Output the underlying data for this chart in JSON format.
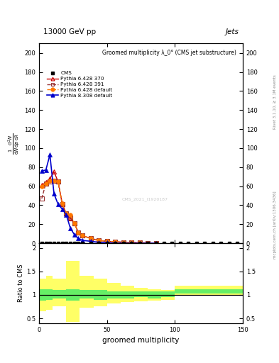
{
  "title_top_left": "13000 GeV pp",
  "title_top_right": "Jets",
  "plot_title": "Groomed multiplicity λ_0° (CMS jet substructure)",
  "ylabel_ratio": "Ratio to CMS",
  "xlabel": "groomed multiplicity",
  "right_label_top": "Rivet 3.1.10, ≥ 3.1M events",
  "right_label_bottom": "mcplots.cern.ch [arXiv:1306.3436]",
  "watermark": "CMS_2021_I1920187",
  "xlim": [
    0,
    150
  ],
  "ylim_main": [
    0,
    210
  ],
  "ylim_ratio": [
    0.4,
    2.1
  ],
  "yticks_main": [
    0,
    20,
    40,
    60,
    80,
    100,
    120,
    140,
    160,
    180,
    200
  ],
  "yticks_ratio": [
    0.5,
    1.0,
    1.5,
    2.0
  ],
  "xticks": [
    0,
    50,
    100,
    150
  ],
  "cms_x": [
    2,
    5,
    8,
    11,
    14,
    17,
    20,
    23,
    26,
    29,
    32,
    38,
    44,
    50,
    56,
    62,
    68,
    74,
    80,
    86,
    92,
    98,
    104,
    110,
    116,
    122,
    128,
    134,
    140,
    146
  ],
  "cms_y": [
    0,
    0,
    0,
    0,
    0,
    0,
    0,
    0,
    0,
    0,
    0,
    0,
    0,
    0,
    0,
    0,
    0,
    0,
    0,
    0,
    0,
    0,
    0,
    0,
    0,
    0,
    0,
    0,
    0,
    0
  ],
  "p6_370_x": [
    2,
    5,
    8,
    11,
    14,
    17,
    20,
    23,
    26,
    29,
    32,
    38,
    44,
    50,
    56,
    62,
    68,
    74,
    80,
    86
  ],
  "p6_370_y": [
    61,
    64,
    68,
    75,
    65,
    42,
    31,
    26,
    21,
    11,
    8,
    5,
    3,
    2,
    1.5,
    1.0,
    0.8,
    0.5,
    0.3,
    0.1
  ],
  "p6_391_x": [
    2,
    5,
    8,
    11,
    14,
    17,
    20,
    23,
    26,
    29,
    32,
    38,
    44,
    50,
    56,
    62,
    68,
    74,
    80,
    86
  ],
  "p6_391_y": [
    47,
    63,
    65,
    66,
    65,
    41,
    31,
    27,
    21,
    11,
    8,
    5,
    3,
    2,
    1.5,
    1.0,
    0.8,
    0.5,
    0.3,
    0.1
  ],
  "p6_def_x": [
    2,
    5,
    8,
    11,
    14,
    17,
    20,
    23,
    26,
    29,
    32,
    38,
    44,
    50,
    56,
    62,
    68,
    74,
    80,
    86
  ],
  "p6_def_y": [
    60,
    63,
    66,
    66,
    65,
    42,
    31,
    30,
    21,
    11,
    8,
    5,
    3,
    2,
    1.5,
    1.0,
    0.8,
    0.5,
    0.3,
    0.1
  ],
  "p8_def_x": [
    2,
    5,
    8,
    11,
    14,
    17,
    20,
    23,
    26,
    29,
    32,
    38,
    44,
    50,
    56,
    62,
    68,
    74,
    80,
    86
  ],
  "p8_def_y": [
    76,
    77,
    93,
    52,
    41,
    36,
    30,
    16,
    9,
    5,
    3,
    2,
    1,
    0.5,
    0.2,
    0.1,
    0.05,
    0.02,
    0.01,
    0.005
  ],
  "color_p6_370": "#cc0000",
  "color_p6_391": "#993333",
  "color_p6_def": "#ff7700",
  "color_p8_def": "#0000cc",
  "color_cms": "#000000",
  "ratio_bins": [
    0,
    5,
    10,
    20,
    30,
    40,
    50,
    60,
    70,
    80,
    90,
    100,
    110,
    120,
    130,
    140,
    150
  ],
  "ratio_green_lo": [
    0.88,
    0.9,
    0.93,
    0.88,
    0.92,
    0.9,
    0.93,
    0.93,
    0.95,
    0.92,
    0.95,
    1.03,
    1.03,
    1.03,
    1.03,
    1.03
  ],
  "ratio_green_hi": [
    1.12,
    1.12,
    1.1,
    1.12,
    1.1,
    1.1,
    1.08,
    1.08,
    1.08,
    1.08,
    1.08,
    1.12,
    1.12,
    1.12,
    1.12,
    1.12
  ],
  "ratio_yellow_lo": [
    0.65,
    0.68,
    0.75,
    0.42,
    0.72,
    0.75,
    0.82,
    0.85,
    0.87,
    0.88,
    0.9,
    1.0,
    1.0,
    1.0,
    1.0,
    1.0
  ],
  "ratio_yellow_hi": [
    1.35,
    1.4,
    1.35,
    1.72,
    1.4,
    1.35,
    1.25,
    1.2,
    1.15,
    1.12,
    1.1,
    1.2,
    1.2,
    1.2,
    1.2,
    1.2
  ]
}
